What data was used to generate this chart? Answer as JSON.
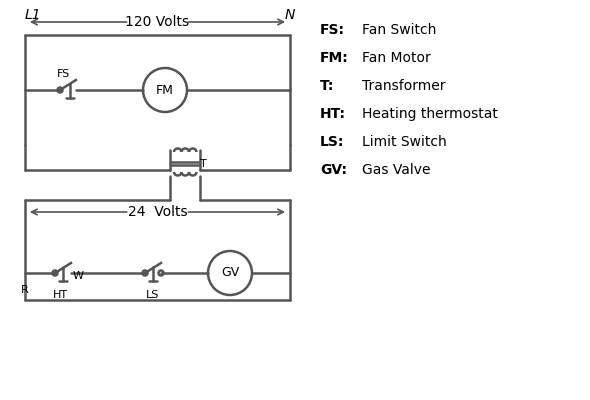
{
  "bg_color": "#ffffff",
  "line_color": "#555555",
  "text_color": "#000000",
  "line_width": 1.8,
  "legend_items": [
    [
      "FS:",
      "Fan Switch"
    ],
    [
      "FM:",
      "Fan Motor"
    ],
    [
      "T:",
      "Transformer"
    ],
    [
      "HT:",
      "Heating thermostat"
    ],
    [
      "LS:",
      "Limit Switch"
    ],
    [
      "GV:",
      "Gas Valve"
    ]
  ],
  "L1_label": "L1",
  "N_label": "N",
  "v120_label": "120 Volts",
  "v24_label": "24  Volts",
  "FS_label": "FS",
  "FM_label": "FM",
  "T_label": "T",
  "HT_label": "HT",
  "LS_label": "LS",
  "GV_label": "GV",
  "R_label": "R",
  "W_label": "W"
}
